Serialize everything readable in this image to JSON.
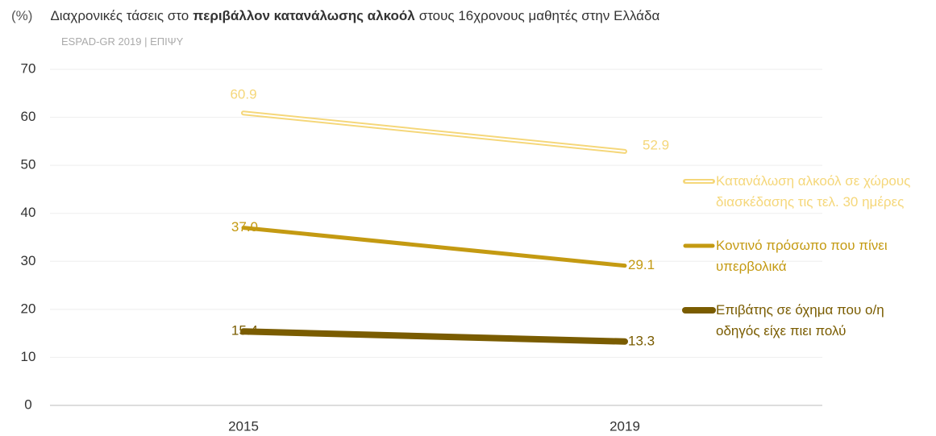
{
  "chart_data": {
    "type": "line",
    "y_unit": "(%)",
    "title_parts": [
      "Διαχρονικές τάσεις στο",
      "περιβάλλον κατανάλωσης αλκοόλ",
      "στους 16χρονους μαθητές στην Ελλάδα"
    ],
    "subtitle": "ESPAD-GR 2019 | ΕΠΙΨΥ",
    "categories": [
      "2015",
      "2019"
    ],
    "series": [
      {
        "name": "Κατανάλωση αλκοόλ σε χώρους διασκέδασης τις τελ. 30 ημέρες",
        "color": "#f5d77a",
        "values": [
          60.9,
          52.9
        ],
        "value_labels": [
          "60.9",
          "52.9"
        ]
      },
      {
        "name": "Κοντινό πρόσωπο που πίνει υπερβολικά",
        "color": "#c49a12",
        "values": [
          37.0,
          29.1
        ],
        "value_labels": [
          "37.0",
          "29.1"
        ]
      },
      {
        "name": "Επιβάτης σε όχημα που ο/η οδηγός είχε πιει πολύ",
        "color": "#7a5c00",
        "values": [
          15.4,
          13.3
        ],
        "value_labels": [
          "15.4",
          "13.3"
        ]
      }
    ],
    "ylim": [
      0,
      70
    ],
    "yticks": [
      0,
      10,
      20,
      30,
      40,
      50,
      60,
      70
    ],
    "grid": true
  }
}
